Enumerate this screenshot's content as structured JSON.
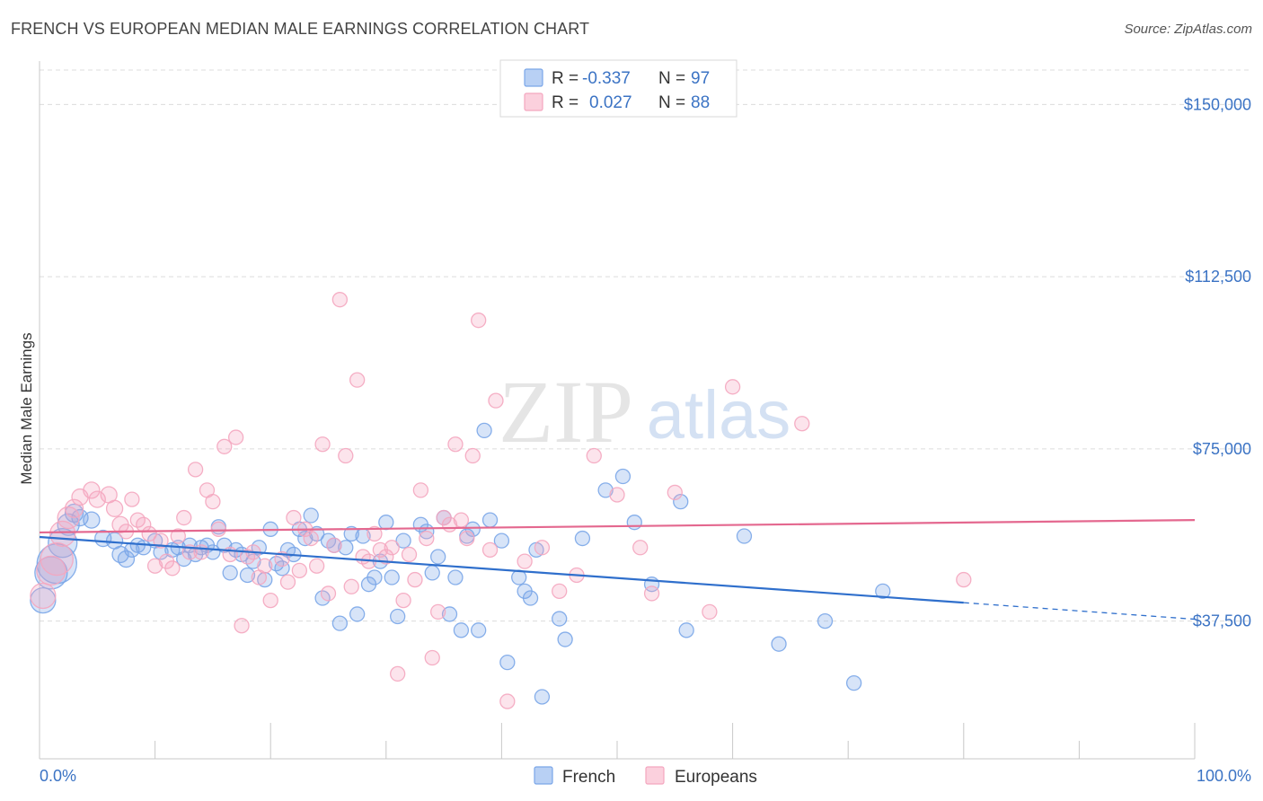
{
  "title": "FRENCH VS EUROPEAN MEDIAN MALE EARNINGS CORRELATION CHART",
  "source": "Source: ZipAtlas.com",
  "watermark": {
    "zip": "ZIP",
    "atlas": "atlas"
  },
  "chart_data": {
    "type": "scatter",
    "ylabel": "Median Male Earnings",
    "xlim": [
      0,
      100
    ],
    "ylim": [
      7500,
      157500
    ],
    "y_ticks": [
      {
        "value": 150000,
        "label": "$150,000"
      },
      {
        "value": 112500,
        "label": "$112,500"
      },
      {
        "value": 75000,
        "label": "$75,000"
      },
      {
        "value": 37500,
        "label": "$37,500"
      }
    ],
    "x_tick_labels": {
      "min": "0.0%",
      "max": "100.0%"
    },
    "grid": true,
    "legend": {
      "placement": "top-center",
      "entries": [
        {
          "series": "French",
          "r_label": "R =",
          "r_value": "-0.337",
          "n_label": "N =",
          "n_value": "97"
        },
        {
          "series": "Europeans",
          "r_label": "R =",
          "r_value": "0.027",
          "n_label": "N =",
          "n_value": "88"
        }
      ]
    },
    "series": [
      {
        "name": "French",
        "color": "#7aa6e8",
        "line_color": "#2f6fcc",
        "trend": {
          "x0": 0,
          "y0": 55800,
          "x1": 80,
          "y1": 41500,
          "dash_to_x": 100,
          "dash_to_y": 37900
        },
        "points": [
          [
            0.3,
            42000,
            14
          ],
          [
            1,
            48000,
            18
          ],
          [
            1.5,
            50000,
            22
          ],
          [
            2,
            54500,
            16
          ],
          [
            2.5,
            58500,
            12
          ],
          [
            3,
            61000,
            10
          ],
          [
            3.5,
            60000,
            9
          ],
          [
            4.5,
            59500,
            9
          ],
          [
            5.5,
            55500,
            9
          ],
          [
            6.5,
            55000,
            9
          ],
          [
            7,
            52000,
            9
          ],
          [
            7.5,
            51000,
            9
          ],
          [
            8,
            53000,
            8
          ],
          [
            8.5,
            54000,
            8
          ],
          [
            9,
            53500,
            8
          ],
          [
            10,
            55000,
            8
          ],
          [
            10.5,
            52500,
            8
          ],
          [
            11.5,
            53000,
            8
          ],
          [
            12,
            53500,
            8
          ],
          [
            12.5,
            51000,
            8
          ],
          [
            13,
            54000,
            8
          ],
          [
            13.5,
            52000,
            8
          ],
          [
            14,
            53500,
            8
          ],
          [
            14.5,
            54000,
            8
          ],
          [
            15,
            52500,
            8
          ],
          [
            15.5,
            58000,
            8
          ],
          [
            16,
            54000,
            8
          ],
          [
            16.5,
            48000,
            8
          ],
          [
            17,
            53000,
            8
          ],
          [
            17.5,
            52000,
            8
          ],
          [
            18,
            47500,
            8
          ],
          [
            18.5,
            50500,
            8
          ],
          [
            19,
            53500,
            8
          ],
          [
            19.5,
            46500,
            8
          ],
          [
            20,
            57500,
            8
          ],
          [
            20.5,
            50000,
            8
          ],
          [
            21,
            49000,
            8
          ],
          [
            21.5,
            53000,
            8
          ],
          [
            22,
            52000,
            8
          ],
          [
            22.5,
            57500,
            8
          ],
          [
            23,
            55500,
            8
          ],
          [
            23.5,
            60500,
            8
          ],
          [
            24,
            56500,
            8
          ],
          [
            24.5,
            42500,
            8
          ],
          [
            25,
            55000,
            8
          ],
          [
            25.5,
            54000,
            8
          ],
          [
            26,
            37000,
            8
          ],
          [
            26.5,
            53500,
            8
          ],
          [
            27,
            56500,
            8
          ],
          [
            27.5,
            39000,
            8
          ],
          [
            28,
            56000,
            8
          ],
          [
            28.5,
            45500,
            8
          ],
          [
            29,
            47000,
            8
          ],
          [
            29.5,
            50500,
            8
          ],
          [
            30,
            59000,
            8
          ],
          [
            30.5,
            47000,
            8
          ],
          [
            31,
            38500,
            8
          ],
          [
            31.5,
            55000,
            8
          ],
          [
            33,
            58500,
            8
          ],
          [
            33.5,
            57000,
            8
          ],
          [
            34,
            48000,
            8
          ],
          [
            34.5,
            51500,
            8
          ],
          [
            35,
            60000,
            8
          ],
          [
            35.5,
            39000,
            8
          ],
          [
            36,
            47000,
            8
          ],
          [
            36.5,
            35500,
            8
          ],
          [
            37,
            56000,
            8
          ],
          [
            37.5,
            57500,
            8
          ],
          [
            38,
            35500,
            8
          ],
          [
            38.5,
            79000,
            8
          ],
          [
            39,
            59500,
            8
          ],
          [
            40,
            55000,
            8
          ],
          [
            40.5,
            28500,
            8
          ],
          [
            41.5,
            47000,
            8
          ],
          [
            42,
            44000,
            8
          ],
          [
            42.5,
            42500,
            8
          ],
          [
            43,
            53000,
            8
          ],
          [
            43.5,
            21000,
            8
          ],
          [
            45,
            38000,
            8
          ],
          [
            45.5,
            33500,
            8
          ],
          [
            47,
            55500,
            8
          ],
          [
            49,
            66000,
            8
          ],
          [
            50.5,
            69000,
            8
          ],
          [
            51.5,
            59000,
            8
          ],
          [
            53,
            45500,
            8
          ],
          [
            55.5,
            63500,
            8
          ],
          [
            56,
            35500,
            8
          ],
          [
            61,
            56000,
            8
          ],
          [
            64,
            32500,
            8
          ],
          [
            68,
            37500,
            8
          ],
          [
            70.5,
            24000,
            8
          ],
          [
            73,
            44000,
            8
          ]
        ]
      },
      {
        "name": "Europeans",
        "color": "#f4a6bf",
        "line_color": "#e4688f",
        "trend": {
          "x0": 0,
          "y0": 56800,
          "x1": 100,
          "y1": 59500
        },
        "points": [
          [
            0.3,
            43000,
            14
          ],
          [
            1,
            48500,
            16
          ],
          [
            1.5,
            51000,
            18
          ],
          [
            2,
            56500,
            14
          ],
          [
            2.5,
            60000,
            12
          ],
          [
            3,
            62000,
            10
          ],
          [
            3.5,
            64500,
            9
          ],
          [
            4.5,
            66000,
            9
          ],
          [
            5,
            64000,
            9
          ],
          [
            6,
            65000,
            9
          ],
          [
            6.5,
            62000,
            9
          ],
          [
            7,
            58500,
            9
          ],
          [
            7.5,
            57000,
            8
          ],
          [
            8,
            64000,
            8
          ],
          [
            8.5,
            59500,
            8
          ],
          [
            9,
            58500,
            8
          ],
          [
            9.5,
            56500,
            8
          ],
          [
            10,
            49500,
            8
          ],
          [
            10.5,
            55000,
            8
          ],
          [
            11,
            50500,
            8
          ],
          [
            11.5,
            49000,
            8
          ],
          [
            12,
            56000,
            8
          ],
          [
            12.5,
            60000,
            8
          ],
          [
            13,
            52500,
            8
          ],
          [
            13.5,
            70500,
            8
          ],
          [
            14,
            52500,
            8
          ],
          [
            14.5,
            66000,
            8
          ],
          [
            15,
            63500,
            8
          ],
          [
            15.5,
            57500,
            8
          ],
          [
            16,
            75500,
            8
          ],
          [
            16.5,
            52000,
            8
          ],
          [
            17,
            77500,
            8
          ],
          [
            17.5,
            36500,
            8
          ],
          [
            18,
            51500,
            8
          ],
          [
            18.5,
            52500,
            8
          ],
          [
            19,
            47000,
            8
          ],
          [
            19.5,
            49500,
            8
          ],
          [
            20,
            42000,
            8
          ],
          [
            21,
            51000,
            8
          ],
          [
            21.5,
            46000,
            8
          ],
          [
            22,
            60000,
            8
          ],
          [
            22.5,
            48500,
            8
          ],
          [
            23,
            57500,
            8
          ],
          [
            23.5,
            55500,
            8
          ],
          [
            24,
            49500,
            8
          ],
          [
            24.5,
            76000,
            8
          ],
          [
            25,
            43500,
            8
          ],
          [
            25.5,
            54000,
            8
          ],
          [
            26,
            107500,
            8
          ],
          [
            26.5,
            73500,
            8
          ],
          [
            27,
            45000,
            8
          ],
          [
            27.5,
            90000,
            8
          ],
          [
            28,
            51500,
            8
          ],
          [
            28.5,
            50500,
            8
          ],
          [
            29,
            56500,
            8
          ],
          [
            29.5,
            53000,
            8
          ],
          [
            30,
            51500,
            8
          ],
          [
            30.5,
            53500,
            8
          ],
          [
            31,
            26000,
            8
          ],
          [
            31.5,
            42000,
            8
          ],
          [
            32,
            52000,
            8
          ],
          [
            32.5,
            46500,
            8
          ],
          [
            33,
            66000,
            8
          ],
          [
            33.5,
            55500,
            8
          ],
          [
            34,
            29500,
            8
          ],
          [
            34.5,
            39500,
            8
          ],
          [
            35,
            60000,
            8
          ],
          [
            35.5,
            58500,
            8
          ],
          [
            36,
            76000,
            8
          ],
          [
            36.5,
            59500,
            8
          ],
          [
            37,
            55500,
            8
          ],
          [
            37.5,
            73500,
            8
          ],
          [
            38,
            103000,
            8
          ],
          [
            39,
            53000,
            8
          ],
          [
            39.5,
            85500,
            8
          ],
          [
            40.5,
            20000,
            8
          ],
          [
            42,
            50500,
            8
          ],
          [
            43.5,
            53500,
            8
          ],
          [
            45,
            44000,
            8
          ],
          [
            46.5,
            47500,
            8
          ],
          [
            48,
            73500,
            8
          ],
          [
            50,
            65000,
            8
          ],
          [
            52,
            53500,
            8
          ],
          [
            53,
            43500,
            8
          ],
          [
            55,
            65500,
            8
          ],
          [
            58,
            39500,
            8
          ],
          [
            60,
            88500,
            8
          ],
          [
            66,
            80500,
            8
          ],
          [
            80,
            46500,
            8
          ]
        ]
      }
    ]
  }
}
